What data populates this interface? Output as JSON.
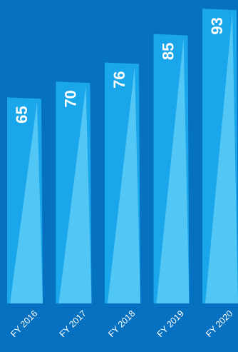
{
  "colors": {
    "background": "#0571c0",
    "bar_dark": "#1aa6ea",
    "bar_light": "#52c6f4"
  },
  "chart_data": {
    "type": "bar",
    "categories": [
      "FY 2016",
      "FY 2017",
      "FY 2018",
      "FY 2019",
      "FY 2020"
    ],
    "values": [
      65,
      70,
      76,
      85,
      93
    ],
    "title": "",
    "xlabel": "",
    "ylabel": "",
    "data_labels": [
      "65",
      "70",
      "76",
      "85",
      "93"
    ],
    "grid": false,
    "legend": "none"
  }
}
